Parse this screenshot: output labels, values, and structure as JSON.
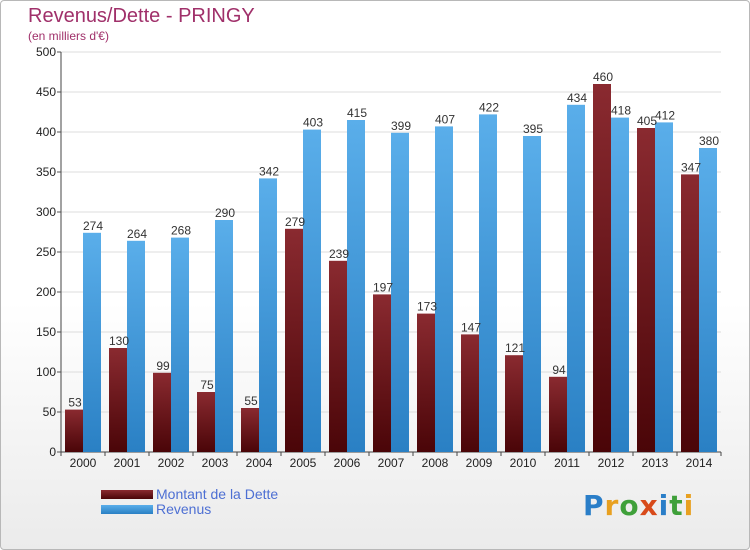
{
  "title": "Revenus/Dette - PRINGY",
  "subtitle": "(en milliers d'€)",
  "colors": {
    "dette": "#6b1116",
    "revenus": "#3b9ae0",
    "title": "#a0306a",
    "legend_text": "#4d6fd3"
  },
  "legend": {
    "dette_label": "Montant de la Dette",
    "revenus_label": "Revenus"
  },
  "logo": {
    "text": "Proxiti"
  },
  "chart_data": {
    "type": "bar",
    "title": "Revenus/Dette - PRINGY",
    "subtitle": "(en milliers d'€)",
    "categories": [
      "2000",
      "2001",
      "2002",
      "2003",
      "2004",
      "2005",
      "2006",
      "2007",
      "2008",
      "2009",
      "2010",
      "2011",
      "2012",
      "2013",
      "2014"
    ],
    "series": [
      {
        "name": "Montant de la Dette",
        "values": [
          53,
          130,
          99,
          75,
          55,
          279,
          239,
          197,
          173,
          147,
          121,
          94,
          460,
          405,
          347
        ]
      },
      {
        "name": "Revenus",
        "values": [
          274,
          264,
          268,
          290,
          342,
          403,
          415,
          399,
          407,
          422,
          395,
          434,
          418,
          412,
          380
        ]
      }
    ],
    "ylim": [
      0,
      500
    ],
    "yticks": [
      0,
      50,
      100,
      150,
      200,
      250,
      300,
      350,
      400,
      450,
      500
    ],
    "grid": true,
    "legend_position": "bottom-left"
  }
}
